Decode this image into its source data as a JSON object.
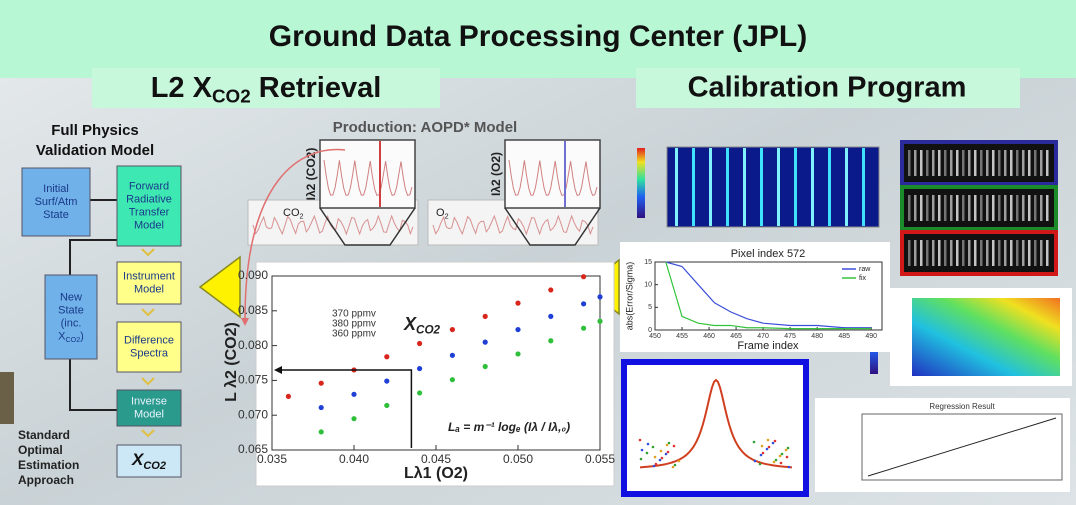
{
  "header": {
    "title": "Ground Data Processing Center (JPL)"
  },
  "left": {
    "heading": {
      "prefix": "L2 X",
      "sub": "CO2",
      "suffix": " Retrieval"
    },
    "flow_title": [
      "Full Physics",
      "Validation Model"
    ],
    "nodes": [
      {
        "lines": [
          "Initial",
          "Surf/Atm",
          "State"
        ]
      },
      {
        "lines": [
          "Forward",
          "Radiative",
          "Transfer",
          "Model"
        ]
      },
      {
        "lines": [
          "Instrument",
          "Model"
        ]
      },
      {
        "lines": [
          "Difference",
          "Spectra"
        ]
      },
      {
        "lines": [
          "Inverse",
          "Model"
        ]
      },
      {
        "lines": [
          "New",
          "State",
          "(inc."
        ],
        "extra": {
          "prefix": "X",
          "sub": "CO2",
          "suffix": ")"
        }
      },
      {
        "lines": [],
        "extra": {
          "prefix": "X",
          "sub": "CO2",
          "suffix": ""
        }
      }
    ],
    "caption": [
      "Standard",
      "Optimal",
      "Estimation",
      "Approach"
    ]
  },
  "center": {
    "title": "Production: AOPD* Model",
    "spectra": [
      {
        "band": {
          "prefix": "CO",
          "sub": "2"
        },
        "axis": "Iλ2 (CO2)"
      },
      {
        "band": {
          "prefix": "O",
          "sub": "2"
        },
        "axis": "Iλ2 (O2)"
      }
    ],
    "plot": {
      "xlabel": "Lλ1 (O2)",
      "ylabel": "L λ2 (CO2)",
      "xlim": [
        0.035,
        0.055
      ],
      "xticks": [
        0.035,
        {
          "value": 0.04,
          "label": "0.040"
        },
        0.045,
        {
          "value": 0.05,
          "label": "0.050"
        },
        0.055
      ],
      "ylim": [
        0.065,
        0.09
      ],
      "yticks": [
        0.065,
        {
          "value": 0.07,
          "label": "0.070"
        },
        0.075,
        {
          "value": 0.08,
          "label": "0.080"
        },
        0.085,
        {
          "value": 0.09,
          "label": "0.090"
        }
      ],
      "annotations": [
        "370 ppmv",
        "380 ppmv",
        "360 ppmv"
      ],
      "symbol": {
        "prefix": "X",
        "sub": "CO2"
      },
      "equation": "Lₐ = m⁻¹ logₑ (Iλ / Iλ,₀)",
      "series": [
        {
          "color": "#d9261c",
          "x": [
            0.036,
            0.038,
            0.04,
            0.042,
            0.044,
            0.046,
            0.048,
            0.05,
            0.052,
            0.054
          ],
          "values": [
            0.0727,
            0.0746,
            0.0765,
            0.0784,
            0.0803,
            0.0823,
            0.0842,
            0.0861,
            0.088,
            0.0899
          ]
        },
        {
          "color": "#1f3fd6",
          "x": [
            0.038,
            0.04,
            0.042,
            0.044,
            0.046,
            0.048,
            0.05,
            0.052,
            0.054,
            0.055
          ],
          "values": [
            0.0711,
            0.073,
            0.0749,
            0.0767,
            0.0786,
            0.0805,
            0.0823,
            0.0842,
            0.086,
            0.087
          ]
        },
        {
          "color": "#2fbf3a",
          "x": [
            0.038,
            0.04,
            0.042,
            0.044,
            0.046,
            0.048,
            0.05,
            0.052,
            0.054,
            0.055
          ],
          "values": [
            0.0676,
            0.0695,
            0.0714,
            0.0732,
            0.0751,
            0.077,
            0.0788,
            0.0807,
            0.0825,
            0.0835
          ]
        }
      ]
    }
  },
  "right": {
    "heading": "Calibration Program",
    "pixel_plot": {
      "title": "Pixel index 572",
      "xlabel": "Frame index",
      "ylabel": "abs(Error/Sigma)",
      "xlim": [
        450,
        492
      ],
      "xticks": [
        450,
        455,
        460,
        465,
        470,
        475,
        480,
        485,
        490
      ],
      "ylim": [
        0,
        15
      ],
      "yticks": [
        0,
        5,
        10,
        15
      ],
      "x": [
        452,
        455,
        458,
        461,
        464,
        467,
        470,
        475,
        480,
        485,
        490
      ],
      "series": [
        {
          "name": "raw",
          "color": "#3b4fd8",
          "values": [
            15,
            14,
            10,
            6,
            4,
            2.5,
            1.5,
            1,
            1,
            0.5,
            0.5
          ]
        },
        {
          "name": "fix",
          "color": "#33c23b",
          "values": [
            15,
            3,
            1.5,
            1,
            1,
            0.5,
            0.5,
            0.3,
            0.3,
            0.3,
            0.3
          ]
        }
      ]
    },
    "regression_title": "Regression Result"
  }
}
